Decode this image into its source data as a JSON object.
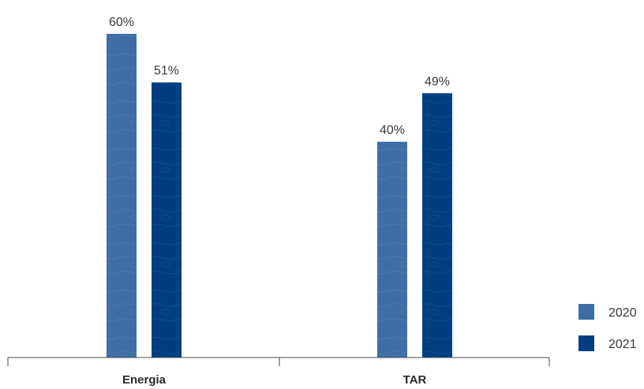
{
  "chart_data": {
    "type": "bar",
    "categories": [
      "Energia",
      "TAR"
    ],
    "series": [
      {
        "name": "2020",
        "values": [
          60,
          40
        ],
        "color": "#3f6ea6"
      },
      {
        "name": "2021",
        "values": [
          51,
          49
        ],
        "color": "#003f7f"
      }
    ],
    "value_labels": [
      [
        "60%",
        "40%"
      ],
      [
        "51%",
        "49%"
      ]
    ],
    "unit": "%",
    "ylim": [
      0,
      60
    ],
    "grid": false,
    "legend_position": "bottom-right",
    "title": "",
    "xlabel": "",
    "ylabel": ""
  }
}
